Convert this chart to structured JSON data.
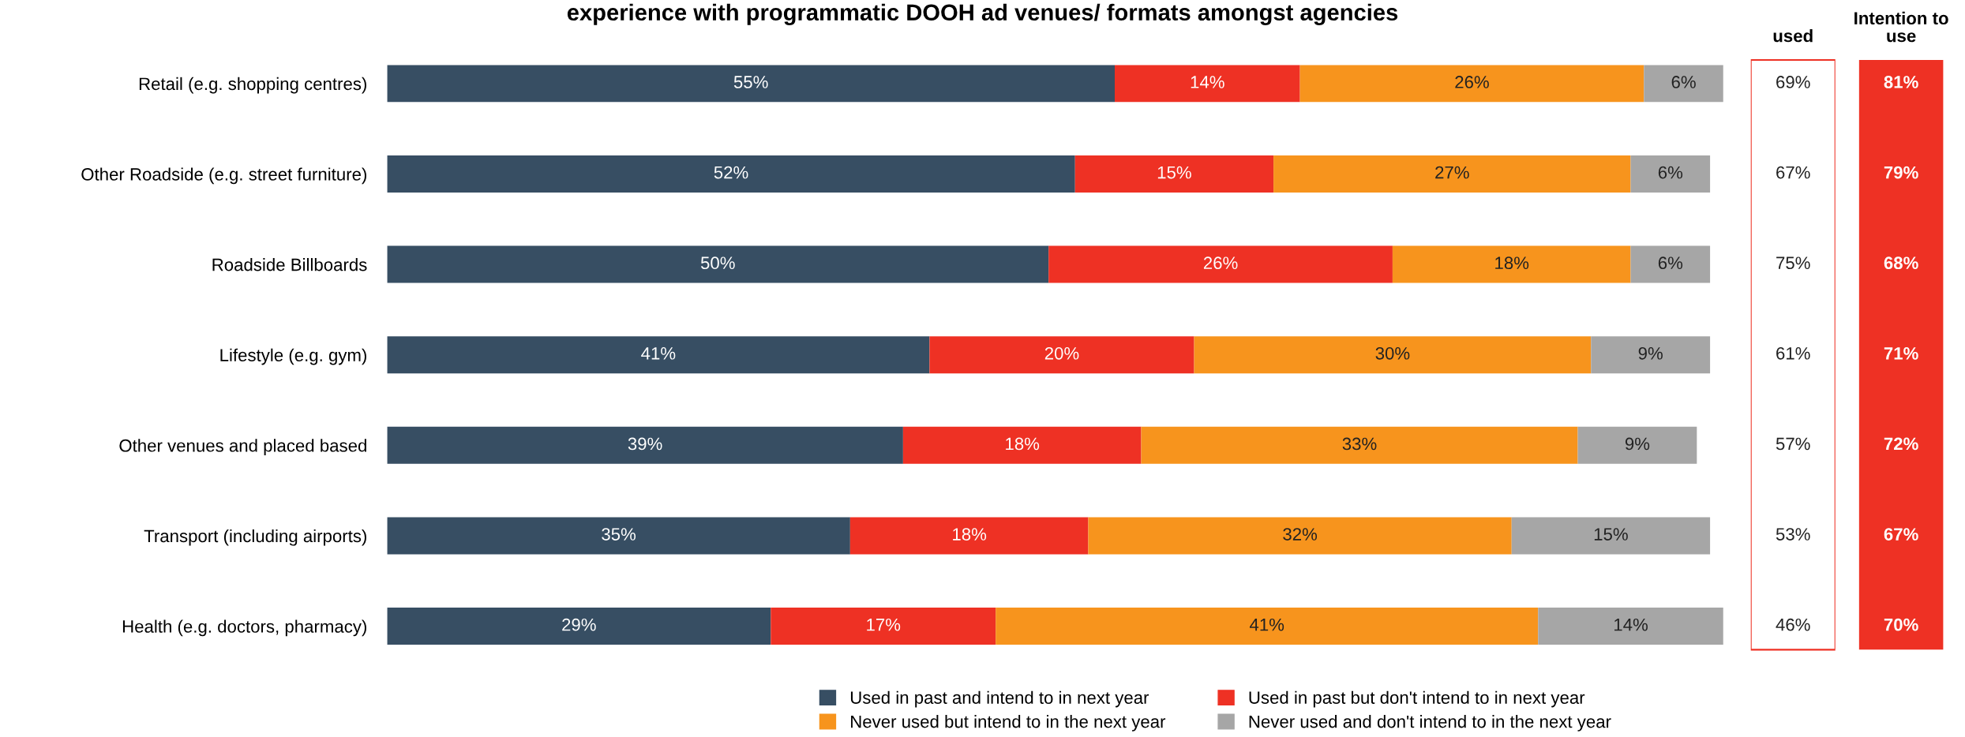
{
  "chart_data": [
    {
      "type": "bar",
      "orientation": "horizontal",
      "stacked": true,
      "legend": "bottom",
      "grid": false,
      "title": "experience with programmatic DOOH ad venues/ formats amongst agencies",
      "categories": [
        "Retail (e.g. shopping centres)",
        "Other Roadside (e.g. street furniture)",
        "Roadside Billboards",
        "Lifestyle (e.g. gym)",
        "Other venues and placed based",
        "Transport (including airports)",
        "Health (e.g. doctors, pharmacy)"
      ],
      "series": [
        {
          "name": "Used in past and intend to in next year",
          "color": "#374e63",
          "values": [
            55,
            52,
            50,
            41,
            39,
            35,
            29
          ],
          "value_labels": [
            "55%",
            "52%",
            "50%",
            "41%",
            "39%",
            "35%",
            "29%"
          ]
        },
        {
          "name": "Used in past but don't intend to in next year",
          "color": "#ee3124",
          "values": [
            14,
            15,
            26,
            20,
            18,
            18,
            17
          ],
          "value_labels": [
            "14%",
            "15%",
            "26%",
            "20%",
            "18%",
            "18%",
            "17%"
          ]
        },
        {
          "name": "Never used but intend to in the next year",
          "color": "#f7941d",
          "values": [
            26,
            27,
            18,
            30,
            33,
            32,
            41
          ],
          "value_labels": [
            "26%",
            "27%",
            "18%",
            "30%",
            "33%",
            "32%",
            "41%"
          ]
        },
        {
          "name": "Never used and don't intend to in the next year",
          "color": "#a6a6a6",
          "values": [
            6,
            6,
            6,
            9,
            9,
            15,
            14
          ],
          "value_labels": [
            "6%",
            "6%",
            "6%",
            "9%",
            "9%",
            "15%",
            "14%"
          ]
        }
      ]
    },
    {
      "type": "other",
      "title": "used",
      "annotations": [
        "69%",
        "67%",
        "75%",
        "61%",
        "57%",
        "53%",
        "46%"
      ]
    },
    {
      "type": "other",
      "title": "Intention to use",
      "annotations": [
        "81%",
        "79%",
        "68%",
        "71%",
        "72%",
        "67%",
        "70%"
      ]
    }
  ]
}
